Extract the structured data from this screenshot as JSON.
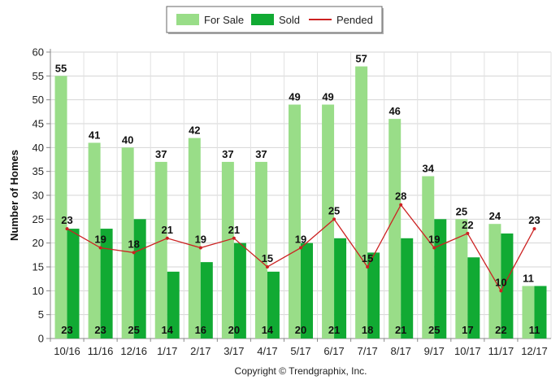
{
  "chart_data": {
    "type": "bar",
    "categories": [
      "10/16",
      "11/16",
      "12/16",
      "1/17",
      "2/17",
      "3/17",
      "4/17",
      "5/17",
      "6/17",
      "7/17",
      "8/17",
      "9/17",
      "10/17",
      "11/17",
      "12/17"
    ],
    "series": [
      {
        "name": "For Sale",
        "type": "bar",
        "color": "#99dd88",
        "values": [
          55,
          41,
          40,
          37,
          42,
          37,
          37,
          49,
          49,
          57,
          46,
          34,
          25,
          24,
          11
        ]
      },
      {
        "name": "Sold",
        "type": "bar",
        "color": "#11aa33",
        "values": [
          23,
          23,
          25,
          14,
          16,
          20,
          14,
          20,
          21,
          18,
          21,
          25,
          17,
          22,
          11
        ]
      },
      {
        "name": "Pended",
        "type": "line",
        "color": "#cc2222",
        "values": [
          23,
          19,
          18,
          21,
          19,
          21,
          15,
          19,
          25,
          15,
          28,
          19,
          22,
          10,
          23
        ]
      }
    ],
    "ylabel": "Number of Homes",
    "ylim": [
      0,
      60
    ],
    "yticks": [
      0,
      5,
      10,
      15,
      20,
      25,
      30,
      35,
      40,
      45,
      50,
      55,
      60
    ],
    "grid": true,
    "legend": "top-center"
  },
  "footer": {
    "copyright": "Copyright © Trendgraphix, Inc."
  }
}
